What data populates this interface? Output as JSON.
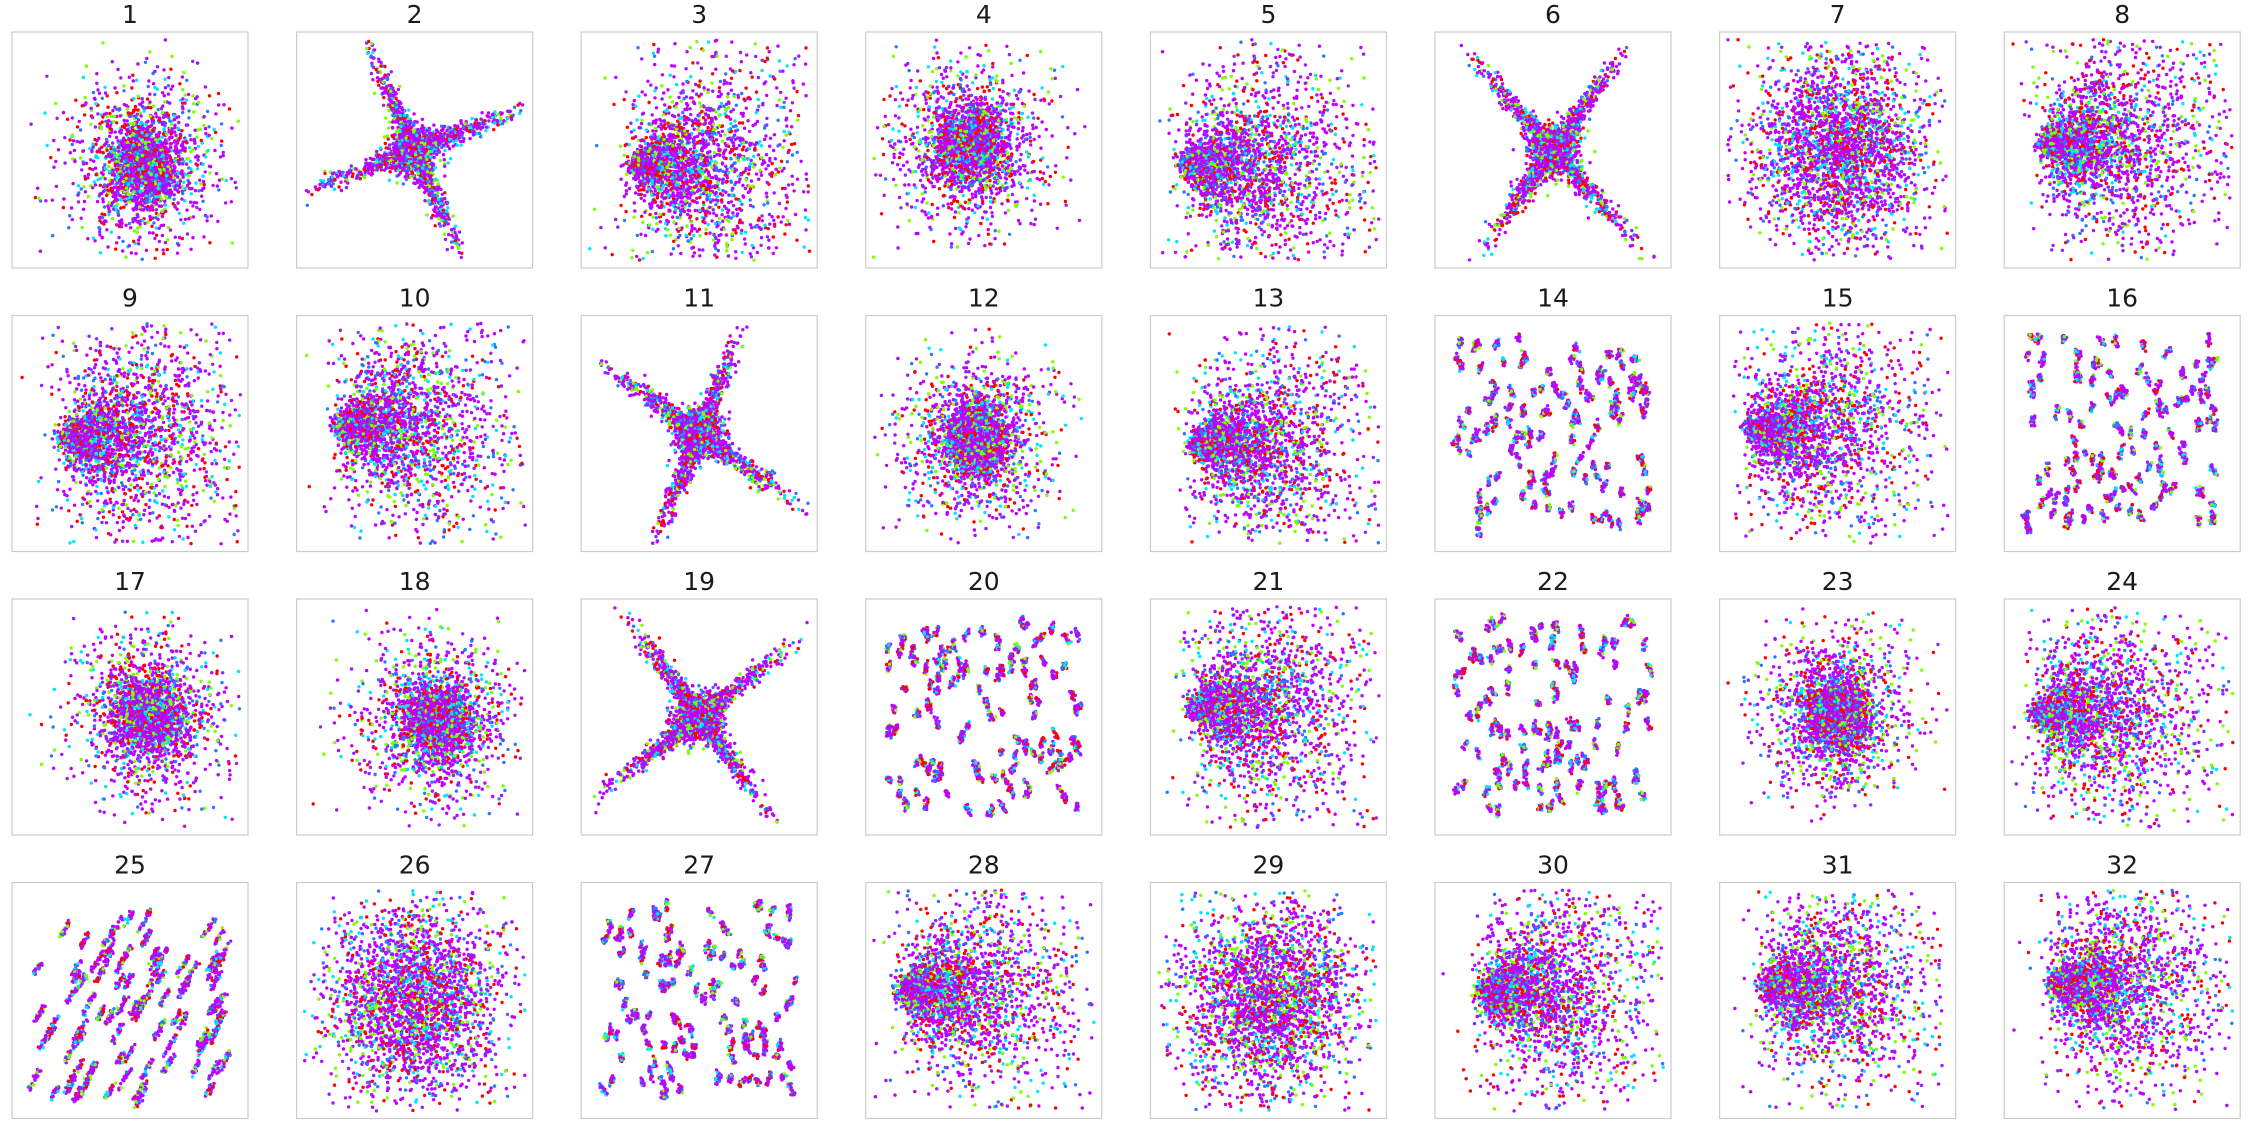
{
  "chart_data": {
    "type": "scatter",
    "grid": false,
    "axes_ticks": false,
    "color_palette": [
      "#c000ff",
      "#9a1cff",
      "#ff0000",
      "#7fff00",
      "#00e5ff",
      "#2979ff"
    ],
    "panels": [
      {
        "title": "1",
        "pattern": "blob"
      },
      {
        "title": "2",
        "pattern": "cross"
      },
      {
        "title": "3",
        "pattern": "fan_right"
      },
      {
        "title": "4",
        "pattern": "blob"
      },
      {
        "title": "5",
        "pattern": "fan_right"
      },
      {
        "title": "6",
        "pattern": "cross"
      },
      {
        "title": "7",
        "pattern": "diffuse"
      },
      {
        "title": "8",
        "pattern": "fan_right"
      },
      {
        "title": "9",
        "pattern": "fan_right"
      },
      {
        "title": "10",
        "pattern": "fan_right"
      },
      {
        "title": "11",
        "pattern": "cross"
      },
      {
        "title": "12",
        "pattern": "blob"
      },
      {
        "title": "13",
        "pattern": "fan_right"
      },
      {
        "title": "14",
        "pattern": "streaks"
      },
      {
        "title": "15",
        "pattern": "fan_right"
      },
      {
        "title": "16",
        "pattern": "streaks"
      },
      {
        "title": "17",
        "pattern": "blob"
      },
      {
        "title": "18",
        "pattern": "blob"
      },
      {
        "title": "19",
        "pattern": "cross"
      },
      {
        "title": "20",
        "pattern": "streaks"
      },
      {
        "title": "21",
        "pattern": "fan_right"
      },
      {
        "title": "22",
        "pattern": "streaks"
      },
      {
        "title": "23",
        "pattern": "blob"
      },
      {
        "title": "24",
        "pattern": "fan_right"
      },
      {
        "title": "25",
        "pattern": "diagonal"
      },
      {
        "title": "26",
        "pattern": "diffuse"
      },
      {
        "title": "27",
        "pattern": "streaks"
      },
      {
        "title": "28",
        "pattern": "fan_right"
      },
      {
        "title": "29",
        "pattern": "diffuse"
      },
      {
        "title": "30",
        "pattern": "fan_right"
      },
      {
        "title": "31",
        "pattern": "fan_right"
      },
      {
        "title": "32",
        "pattern": "fan_right"
      }
    ]
  }
}
